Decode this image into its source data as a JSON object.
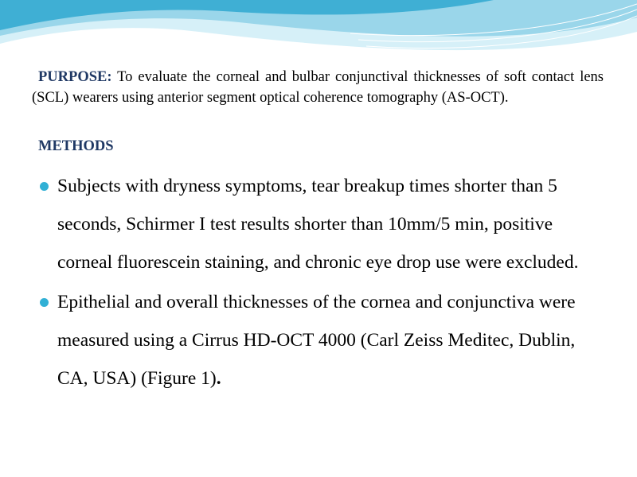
{
  "colors": {
    "heading": "#1F3864",
    "bullet": "#31B0D5",
    "wave_light": "#D6F0F8",
    "wave_mid": "#9AD6EA",
    "wave_dark": "#3FAFD4"
  },
  "purpose": {
    "label": "PURPOSE:",
    "text": " To evaluate the corneal and bulbar conjunctival thicknesses of soft contact lens (SCL) wearers using anterior segment optical coherence tomography (AS-OCT)."
  },
  "methods": {
    "heading": "METHODS",
    "bullets": [
      {
        "text": "Subjects with dryness symptoms, tear breakup times shorter than 5 seconds, Schirmer I test results shorter than 10mm/5 min, positive corneal fluorescein staining, and chronic eye drop use were excluded.",
        "end": ""
      },
      {
        "text": "Epithelial and overall thicknesses of the cornea and conjunctiva were measured using a Cirrus HD-OCT 4000 (Carl Zeiss Meditec, Dublin, CA, USA) (Figure 1)",
        "end": "."
      }
    ]
  }
}
